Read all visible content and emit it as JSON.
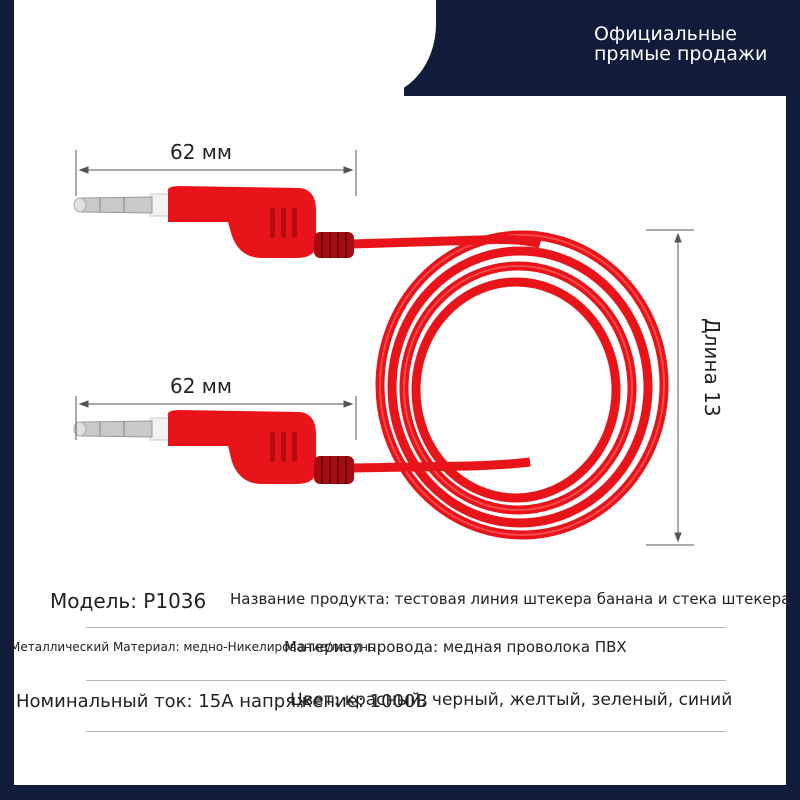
{
  "badge": {
    "line1": "Официальные",
    "line2": "прямые продажи"
  },
  "dimensions": {
    "top_plug": "62 мм",
    "bottom_plug": "62 мм",
    "length": "Длина 13"
  },
  "specs": {
    "model": "Модель: P1036",
    "product_name": "Название продукта: тестовая линия штекера банана и стека штекера",
    "metal_material": "Металлический Материал: медно-Никелирование/латунь",
    "wire_material": "Материал провода: медная проволока ПВХ",
    "rated_current": "Номинальный ток: 15А напряжение: 1000В",
    "color": "Цвет: красный, черный, желтый, зеленый, синий"
  },
  "colors": {
    "navy": "#101c3a",
    "cable_red": "#e8141a"
  }
}
